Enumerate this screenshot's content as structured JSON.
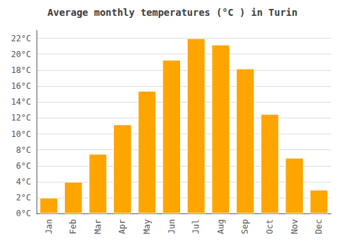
{
  "chart_data": {
    "type": "bar",
    "title": "Average monthly temperatures (°C ) in Turin",
    "categories": [
      "Jan",
      "Feb",
      "Mar",
      "Apr",
      "May",
      "Jun",
      "Jul",
      "Aug",
      "Sep",
      "Oct",
      "Nov",
      "Dec"
    ],
    "values": [
      2.0,
      4.0,
      7.5,
      11.2,
      15.4,
      19.3,
      22.0,
      21.2,
      18.2,
      12.5,
      7.0,
      3.0
    ],
    "color": "#FFA500",
    "ylim": [
      0,
      23
    ],
    "yticks": [
      {
        "value": 0,
        "label": "0°C"
      },
      {
        "value": 2,
        "label": "2°C"
      },
      {
        "value": 4,
        "label": "4°C"
      },
      {
        "value": 6,
        "label": "6°C"
      },
      {
        "value": 8,
        "label": "8°C"
      },
      {
        "value": 10,
        "label": "10°C"
      },
      {
        "value": 12,
        "label": "12°C"
      },
      {
        "value": 14,
        "label": "14°C"
      },
      {
        "value": 16,
        "label": "16°C"
      },
      {
        "value": 18,
        "label": "18°C"
      },
      {
        "value": 20,
        "label": "20°C"
      },
      {
        "value": 22,
        "label": "22°C"
      }
    ],
    "grid": true
  }
}
